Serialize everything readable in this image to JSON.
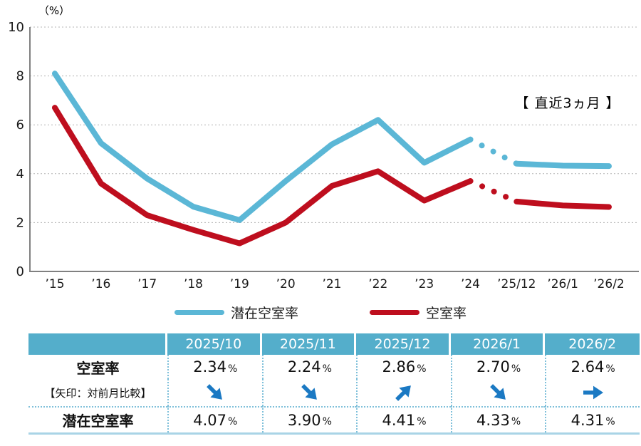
{
  "chart_data": {
    "type": "line",
    "unit_label": "（%）",
    "annotation": "【 直近3ヵ月 】",
    "categories": [
      "’15",
      "’16",
      "’17",
      "’18",
      "’19",
      "’20",
      "’21",
      "’22",
      "’23",
      "’24",
      "’25/12",
      "’26/1",
      "’26/2"
    ],
    "y_ticks": [
      0,
      2,
      4,
      6,
      8,
      10
    ],
    "ylim": [
      0,
      10
    ],
    "grid": true,
    "legend_position": "bottom",
    "forecast_gap_after_index": 9,
    "series": [
      {
        "name": "潜在空室率",
        "color": "#5bb7d6",
        "values": [
          8.1,
          5.25,
          3.8,
          2.65,
          2.1,
          3.7,
          5.2,
          6.2,
          4.45,
          5.4,
          4.41,
          4.33,
          4.31
        ]
      },
      {
        "name": "空室率",
        "color": "#be0e1e",
        "values": [
          6.7,
          3.6,
          2.3,
          1.7,
          1.15,
          2.0,
          3.5,
          4.1,
          2.9,
          3.7,
          2.86,
          2.7,
          2.64
        ]
      }
    ]
  },
  "table": {
    "header_bg": "#54aecb",
    "separator_color": "#7fc0da",
    "arrow_color": "#1b79c3",
    "columns": [
      "2025/10",
      "2025/11",
      "2025/12",
      "2026/1",
      "2026/2"
    ],
    "rows": [
      {
        "label": "空室率",
        "type": "values",
        "unit": "%",
        "values": [
          "2.34",
          "2.24",
          "2.86",
          "2.70",
          "2.64"
        ]
      },
      {
        "label": "【矢印：対前月比較】",
        "type": "arrows",
        "arrows": [
          "down-right",
          "down-right",
          "up-right",
          "down-right",
          "right"
        ]
      },
      {
        "label": "潜在空室率",
        "type": "values",
        "unit": "%",
        "values": [
          "4.07",
          "3.90",
          "4.41",
          "4.33",
          "4.31"
        ]
      }
    ]
  }
}
